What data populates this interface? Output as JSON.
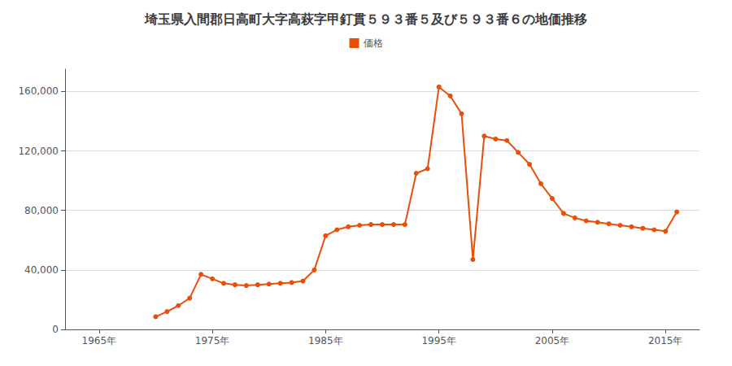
{
  "chart_data": {
    "type": "line",
    "title": "埼玉県入間郡日高町大字高萩字甲釘貫５９３番５及び５９３番６の地価推移",
    "series": [
      {
        "name": "価格",
        "color": "#e8500a",
        "marker": "circle",
        "values": [
          8500,
          12000,
          16000,
          21000,
          37000,
          34000,
          31000,
          30000,
          29500,
          30000,
          30500,
          31000,
          31500,
          32500,
          40000,
          63000,
          67000,
          69000,
          70000,
          70500,
          70500,
          70500,
          70500,
          105000,
          108000,
          163000,
          157000,
          145000,
          47000,
          130000,
          128000,
          127000,
          119000,
          111000,
          98000,
          88000,
          78000,
          75000,
          73000,
          72000,
          71000,
          70000,
          69000,
          68000,
          67000,
          66000,
          79000
        ]
      }
    ],
    "x": [
      1970,
      1971,
      1972,
      1973,
      1974,
      1975,
      1976,
      1977,
      1978,
      1979,
      1980,
      1981,
      1982,
      1983,
      1984,
      1985,
      1986,
      1987,
      1988,
      1989,
      1990,
      1991,
      1992,
      1993,
      1994,
      1995,
      1996,
      1997,
      1998,
      1999,
      2000,
      2001,
      2002,
      2003,
      2004,
      2005,
      2006,
      2007,
      2008,
      2009,
      2010,
      2011,
      2012,
      2013,
      2014,
      2015,
      2016
    ],
    "xlim": [
      1962,
      2018
    ],
    "xticks": [
      {
        "value": 1965,
        "label": "1965年"
      },
      {
        "value": 1975,
        "label": "1975年"
      },
      {
        "value": 1985,
        "label": "1985年"
      },
      {
        "value": 1995,
        "label": "1995年"
      },
      {
        "value": 2005,
        "label": "2005年"
      },
      {
        "value": 2015,
        "label": "2015年"
      }
    ],
    "ylim": [
      0,
      175000
    ],
    "yticks": [
      0,
      {
        "value": 40000,
        "label": "40,000"
      },
      {
        "value": 80000,
        "label": "80,000"
      },
      {
        "value": 120000,
        "label": "120,000"
      },
      {
        "value": 160000,
        "label": "160,000"
      }
    ],
    "grid": true,
    "legend": "top"
  }
}
